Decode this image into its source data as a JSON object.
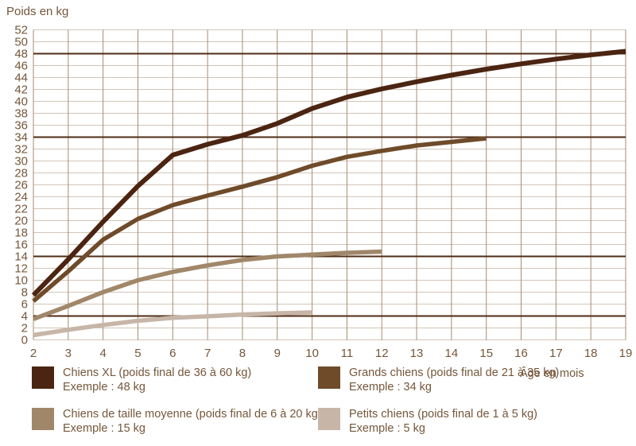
{
  "chart_data": {
    "type": "line",
    "title": "",
    "xlabel": "Âge en mois",
    "ylabel": "Poids en kg",
    "xlim": [
      2,
      19
    ],
    "ylim": [
      0,
      52
    ],
    "ytick_step": 2,
    "xticks": [
      2,
      3,
      4,
      5,
      6,
      7,
      8,
      9,
      10,
      11,
      12,
      13,
      14,
      15,
      16,
      17,
      18,
      19
    ],
    "grid": true,
    "legend_position": "bottom",
    "reference_lines": [
      48,
      34,
      14,
      4
    ],
    "colors": {
      "grid_horizontal": "#d2c5b8",
      "grid_vertical": "#a78b70",
      "reference_line": "#4f2c16",
      "text": "#75573a",
      "background": "#ffffff"
    },
    "series": [
      {
        "id": "chiens-xl",
        "name": "Chiens XL (poids final de 36 à 60 kg)",
        "example": "Exemple : 48 kg",
        "color": "#4b2512",
        "x": [
          2,
          3,
          4,
          5,
          6,
          7,
          8,
          9,
          10,
          11,
          12,
          13,
          14,
          15,
          16,
          17,
          18,
          19
        ],
        "values": [
          7.5,
          13.5,
          19.8,
          25.8,
          31,
          32.8,
          34.3,
          36.3,
          38.8,
          40.7,
          42.1,
          43.3,
          44.4,
          45.4,
          46.3,
          47.1,
          47.8,
          48.4
        ]
      },
      {
        "id": "grands-chiens",
        "name": "Grands chiens (poids final de 21 à 35 kg)",
        "example": "Exemple : 34 kg",
        "color": "#6f4b2a",
        "x": [
          2,
          3,
          4,
          5,
          6,
          7,
          8,
          9,
          10,
          11,
          12,
          13,
          14,
          15
        ],
        "values": [
          6.5,
          11.5,
          16.8,
          20.3,
          22.6,
          24.2,
          25.7,
          27.3,
          29.2,
          30.7,
          31.7,
          32.6,
          33.2,
          33.8
        ]
      },
      {
        "id": "chiens-moyens",
        "name": "Chiens de taille moyenne (poids final de 6 à 20 kg)",
        "example": "Exemple : 15 kg",
        "color": "#a1876a",
        "x": [
          2,
          3,
          4,
          5,
          6,
          7,
          8,
          9,
          10,
          11,
          12
        ],
        "values": [
          3.5,
          5.7,
          8,
          10,
          11.4,
          12.5,
          13.4,
          14,
          14.3,
          14.6,
          14.8
        ]
      },
      {
        "id": "petits-chiens",
        "name": "Petits chiens (poids final de 1 à 5 kg)",
        "example": "Exemple : 5 kg",
        "color": "#c7b6a8",
        "x": [
          2,
          3,
          4,
          5,
          6,
          7,
          8,
          9,
          10
        ],
        "values": [
          0.8,
          1.7,
          2.5,
          3.2,
          3.7,
          3.95,
          4.25,
          4.45,
          4.6
        ]
      }
    ]
  }
}
